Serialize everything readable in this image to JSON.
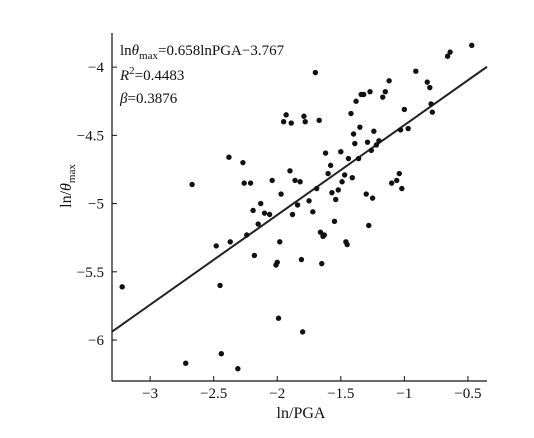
{
  "chart_data": {
    "type": "scatter",
    "xlabel": "ln/PGA",
    "ylabel_parts": {
      "main": "ln/",
      "theta": "θ",
      "sub": "max"
    },
    "xlim": [
      -3.3,
      -0.35
    ],
    "ylim": [
      -6.3,
      -3.75
    ],
    "xticks": [
      -3,
      -2.5,
      -2,
      -1.5,
      -1,
      -0.5
    ],
    "yticks": [
      -4,
      -4.5,
      -5,
      -5.5,
      -6
    ],
    "tick_labels_x": [
      "−3",
      "−2.5",
      "−2",
      "−1.5",
      "−1",
      "−0.5"
    ],
    "tick_labels_y": [
      "−4",
      "−4.5",
      "−5",
      "−5.5",
      "−6"
    ],
    "annotations": {
      "equation": {
        "a": "ln",
        "b": "θ",
        "c": "max",
        "d": "=0.658lnPGA−3.767"
      },
      "r2": {
        "a": "R",
        "b": "2",
        "c": "=0.4483"
      },
      "beta": {
        "a": "β",
        "b": "=0.3876"
      }
    },
    "fit_line": {
      "slope": 0.658,
      "intercept": -3.767
    },
    "points": [
      [
        -3.22,
        -5.61
      ],
      [
        -2.72,
        -6.17
      ],
      [
        -2.67,
        -4.86
      ],
      [
        -2.48,
        -5.31
      ],
      [
        -2.45,
        -5.6
      ],
      [
        -2.44,
        -6.1
      ],
      [
        -2.38,
        -4.66
      ],
      [
        -2.37,
        -5.28
      ],
      [
        -2.31,
        -6.21
      ],
      [
        -2.27,
        -4.7
      ],
      [
        -2.26,
        -4.85
      ],
      [
        -2.24,
        -5.23
      ],
      [
        -2.21,
        -4.85
      ],
      [
        -2.19,
        -5.05
      ],
      [
        -2.18,
        -5.38
      ],
      [
        -2.15,
        -5.15
      ],
      [
        -2.13,
        -5.0
      ],
      [
        -2.1,
        -5.07
      ],
      [
        -2.06,
        -5.08
      ],
      [
        -2.04,
        -4.83
      ],
      [
        -2.01,
        -5.45
      ],
      [
        -2.0,
        -5.43
      ],
      [
        -1.99,
        -5.84
      ],
      [
        -1.98,
        -5.28
      ],
      [
        -1.97,
        -4.93
      ],
      [
        -1.95,
        -4.4
      ],
      [
        -1.93,
        -4.35
      ],
      [
        -1.9,
        -4.76
      ],
      [
        -1.89,
        -4.41
      ],
      [
        -1.88,
        -5.08
      ],
      [
        -1.86,
        -4.83
      ],
      [
        -1.84,
        -5.01
      ],
      [
        -1.82,
        -4.84
      ],
      [
        -1.81,
        -5.41
      ],
      [
        -1.8,
        -5.94
      ],
      [
        -1.79,
        -4.36
      ],
      [
        -1.78,
        -4.4
      ],
      [
        -1.75,
        -4.98
      ],
      [
        -1.72,
        -5.06
      ],
      [
        -1.7,
        -4.04
      ],
      [
        -1.69,
        -4.89
      ],
      [
        -1.67,
        -4.39
      ],
      [
        -1.66,
        -5.21
      ],
      [
        -1.65,
        -5.44
      ],
      [
        -1.64,
        -5.24
      ],
      [
        -1.63,
        -5.23
      ],
      [
        -1.62,
        -4.63
      ],
      [
        -1.6,
        -4.78
      ],
      [
        -1.58,
        -4.72
      ],
      [
        -1.57,
        -4.92
      ],
      [
        -1.55,
        -5.13
      ],
      [
        -1.54,
        -4.97
      ],
      [
        -1.52,
        -4.9
      ],
      [
        -1.5,
        -4.62
      ],
      [
        -1.49,
        -4.84
      ],
      [
        -1.47,
        -4.79
      ],
      [
        -1.46,
        -5.28
      ],
      [
        -1.45,
        -5.3
      ],
      [
        -1.44,
        -4.67
      ],
      [
        -1.42,
        -4.34
      ],
      [
        -1.41,
        -4.81
      ],
      [
        -1.4,
        -4.49
      ],
      [
        -1.39,
        -4.56
      ],
      [
        -1.38,
        -4.25
      ],
      [
        -1.36,
        -4.67
      ],
      [
        -1.35,
        -4.44
      ],
      [
        -1.34,
        -4.2
      ],
      [
        -1.32,
        -4.2
      ],
      [
        -1.3,
        -4.93
      ],
      [
        -1.29,
        -4.55
      ],
      [
        -1.28,
        -5.16
      ],
      [
        -1.27,
        -4.18
      ],
      [
        -1.26,
        -4.61
      ],
      [
        -1.25,
        -4.96
      ],
      [
        -1.24,
        -4.47
      ],
      [
        -1.22,
        -4.57
      ],
      [
        -1.2,
        -4.54
      ],
      [
        -1.17,
        -4.22
      ],
      [
        -1.15,
        -4.18
      ],
      [
        -1.12,
        -4.1
      ],
      [
        -1.1,
        -4.85
      ],
      [
        -1.06,
        -4.83
      ],
      [
        -1.04,
        -4.78
      ],
      [
        -1.03,
        -4.46
      ],
      [
        -1.02,
        -4.89
      ],
      [
        -1.0,
        -4.31
      ],
      [
        -0.97,
        -4.45
      ],
      [
        -0.91,
        -4.03
      ],
      [
        -0.82,
        -4.11
      ],
      [
        -0.8,
        -4.15
      ],
      [
        -0.79,
        -4.27
      ],
      [
        -0.78,
        -4.33
      ],
      [
        -0.66,
        -3.92
      ],
      [
        -0.64,
        -3.89
      ],
      [
        -0.47,
        -3.84
      ]
    ]
  }
}
